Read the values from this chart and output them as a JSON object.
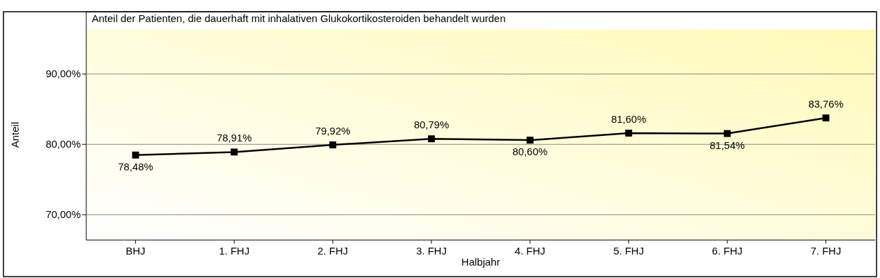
{
  "chart_data": {
    "type": "line",
    "title": "Anteil der Patienten, die dauerhaft mit inhalativen Glukokortikosteroiden behandelt wurden",
    "xlabel": "Halbjahr",
    "ylabel": "Anteil",
    "categories": [
      "BHJ",
      "1. FHJ",
      "2. FHJ",
      "3. FHJ",
      "4. FHJ",
      "5. FHJ",
      "6. FHJ",
      "7. FHJ"
    ],
    "series": [
      {
        "color": "#000000",
        "values": [
          78.48,
          78.91,
          79.92,
          80.79,
          80.6,
          81.6,
          81.54,
          83.76
        ],
        "value_labels": [
          "78,48%",
          "78,91%",
          "79,92%",
          "80,79%",
          "80,60%",
          "81,60%",
          "81,54%",
          "83,76%"
        ]
      }
    ],
    "ylim": [
      66.4,
      96.3
    ],
    "yticks": [
      {
        "value": 70,
        "label": "70,00%"
      },
      {
        "value": 80,
        "label": "80,00%"
      },
      {
        "value": 90,
        "label": "90,00%"
      }
    ],
    "grid": "y",
    "marker": "square",
    "line_style": "solid"
  }
}
